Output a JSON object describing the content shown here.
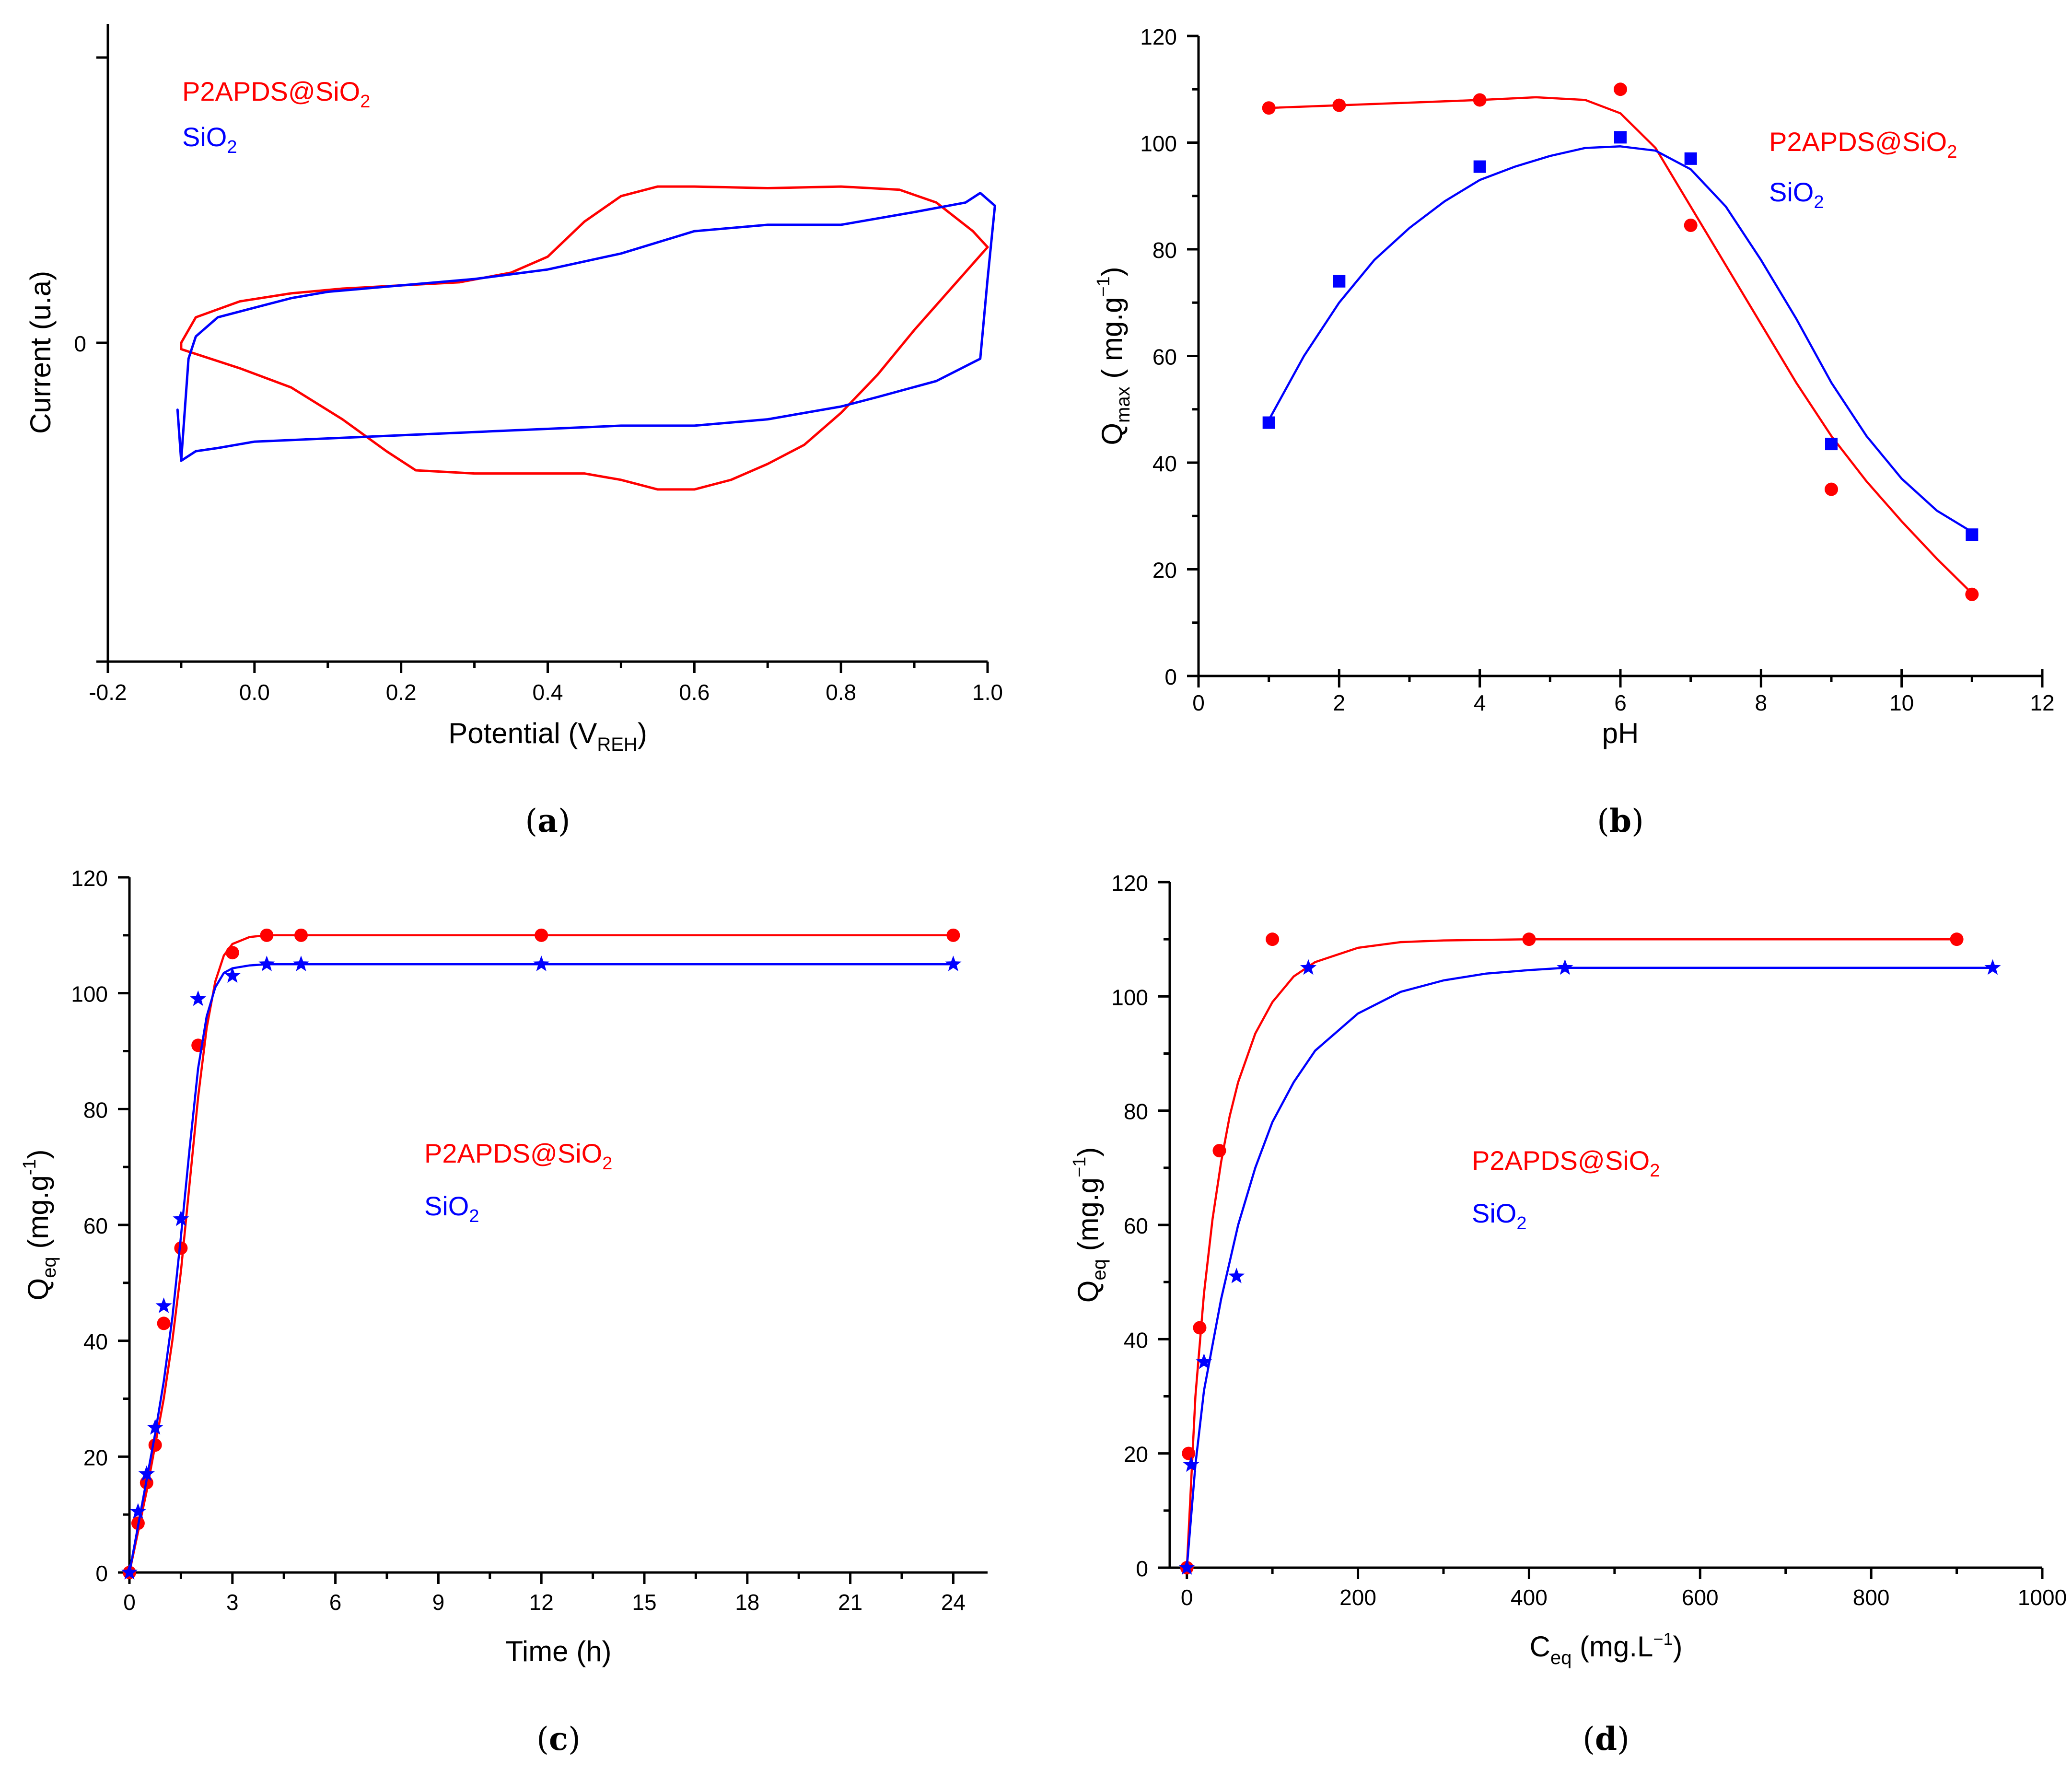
{
  "colors": {
    "red": "#ff0000",
    "blue": "#0000ff"
  },
  "chart_data": [
    {
      "id": "a",
      "type": "line",
      "panel_label": "a",
      "xlabel": {
        "text": "Potential (V",
        "sub": "REH",
        "tail": ")"
      },
      "ylabel": "Current (u.a)",
      "x_ticks": [
        "-0.2",
        "0.0",
        "0.2",
        "0.4",
        "0.6",
        "0.8",
        "1.0"
      ],
      "y_ticks": [
        "0"
      ],
      "xlim": [
        -0.2,
        1.0
      ],
      "ylim": [
        -1.0,
        1.0
      ],
      "legend": [
        {
          "text": "P2APDS@SiO",
          "sub": "2",
          "color": "#ff0000"
        },
        {
          "text": "SiO",
          "sub": "2",
          "color": "#0000ff"
        }
      ],
      "series": [
        {
          "name": "P2APDS@SiO2",
          "color": "#ff0000",
          "closed": true,
          "points": [
            [
              -0.1,
              0.0
            ],
            [
              -0.08,
              0.08
            ],
            [
              -0.02,
              0.13
            ],
            [
              0.05,
              0.155
            ],
            [
              0.12,
              0.17
            ],
            [
              0.2,
              0.18
            ],
            [
              0.28,
              0.19
            ],
            [
              0.35,
              0.22
            ],
            [
              0.4,
              0.27
            ],
            [
              0.45,
              0.38
            ],
            [
              0.5,
              0.46
            ],
            [
              0.55,
              0.49
            ],
            [
              0.6,
              0.49
            ],
            [
              0.7,
              0.485
            ],
            [
              0.8,
              0.49
            ],
            [
              0.88,
              0.48
            ],
            [
              0.93,
              0.44
            ],
            [
              0.98,
              0.35
            ],
            [
              1.0,
              0.3
            ],
            [
              0.95,
              0.17
            ],
            [
              0.9,
              0.04
            ],
            [
              0.85,
              -0.1
            ],
            [
              0.8,
              -0.22
            ],
            [
              0.75,
              -0.32
            ],
            [
              0.7,
              -0.38
            ],
            [
              0.65,
              -0.43
            ],
            [
              0.6,
              -0.46
            ],
            [
              0.55,
              -0.46
            ],
            [
              0.5,
              -0.43
            ],
            [
              0.45,
              -0.41
            ],
            [
              0.4,
              -0.41
            ],
            [
              0.3,
              -0.41
            ],
            [
              0.22,
              -0.4
            ],
            [
              0.18,
              -0.34
            ],
            [
              0.12,
              -0.24
            ],
            [
              0.05,
              -0.14
            ],
            [
              -0.02,
              -0.08
            ],
            [
              -0.1,
              -0.02
            ]
          ]
        },
        {
          "name": "SiO2",
          "color": "#0000ff",
          "closed": true,
          "points": [
            [
              -0.1,
              -0.37
            ],
            [
              -0.09,
              -0.05
            ],
            [
              -0.08,
              0.02
            ],
            [
              -0.05,
              0.08
            ],
            [
              0.0,
              0.11
            ],
            [
              0.05,
              0.14
            ],
            [
              0.1,
              0.16
            ],
            [
              0.2,
              0.18
            ],
            [
              0.3,
              0.2
            ],
            [
              0.4,
              0.23
            ],
            [
              0.5,
              0.28
            ],
            [
              0.6,
              0.35
            ],
            [
              0.7,
              0.37
            ],
            [
              0.8,
              0.37
            ],
            [
              0.9,
              0.41
            ],
            [
              0.97,
              0.44
            ],
            [
              0.99,
              0.47
            ],
            [
              1.01,
              0.43
            ],
            [
              1.0,
              0.2
            ],
            [
              0.99,
              -0.05
            ],
            [
              0.93,
              -0.12
            ],
            [
              0.85,
              -0.17
            ],
            [
              0.8,
              -0.2
            ],
            [
              0.7,
              -0.24
            ],
            [
              0.6,
              -0.26
            ],
            [
              0.5,
              -0.26
            ],
            [
              0.4,
              -0.27
            ],
            [
              0.3,
              -0.28
            ],
            [
              0.2,
              -0.29
            ],
            [
              0.1,
              -0.3
            ],
            [
              0.0,
              -0.31
            ],
            [
              -0.05,
              -0.33
            ],
            [
              -0.08,
              -0.34
            ],
            [
              -0.1,
              -0.37
            ],
            [
              -0.105,
              -0.21
            ]
          ]
        }
      ]
    },
    {
      "id": "b",
      "type": "scatter",
      "panel_label": "b",
      "xlabel": {
        "text": "pH"
      },
      "ylabel": {
        "main": "Q",
        "sub": "max",
        "unit": "( mg.g",
        "sup": "−1",
        "close": ")"
      },
      "xlim": [
        0,
        12
      ],
      "ylim": [
        0,
        120
      ],
      "x_ticks": [
        0,
        2,
        4,
        6,
        8,
        10,
        12
      ],
      "y_ticks": [
        0,
        20,
        40,
        60,
        80,
        100,
        120
      ],
      "legend": [
        {
          "text": "P2APDS@SiO",
          "sub": "2",
          "color": "#ff0000"
        },
        {
          "text": "SiO",
          "sub": "2",
          "color": "#0000ff"
        }
      ],
      "series": [
        {
          "name": "P2APDS@SiO2",
          "color": "#ff0000",
          "marker": "circle",
          "x": [
            1,
            2,
            4,
            6,
            7,
            9,
            11
          ],
          "y": [
            106.5,
            107,
            108,
            110,
            84.5,
            35,
            15.3
          ],
          "fit": [
            [
              1,
              106.5
            ],
            [
              2,
              107
            ],
            [
              3,
              107.5
            ],
            [
              4,
              108
            ],
            [
              4.8,
              108.5
            ],
            [
              5.5,
              108
            ],
            [
              6.0,
              105.5
            ],
            [
              6.5,
              99
            ],
            [
              7,
              88
            ],
            [
              7.5,
              77
            ],
            [
              8,
              66
            ],
            [
              8.5,
              55
            ],
            [
              9,
              45
            ],
            [
              9.5,
              36.5
            ],
            [
              10,
              29
            ],
            [
              10.5,
              22
            ],
            [
              11,
              15.5
            ]
          ]
        },
        {
          "name": "SiO2",
          "color": "#0000ff",
          "marker": "square",
          "x": [
            1,
            2,
            4,
            6,
            7,
            9,
            11
          ],
          "y": [
            47.5,
            74,
            95.5,
            101,
            97,
            43.5,
            26.5
          ],
          "fit": [
            [
              1,
              48
            ],
            [
              1.5,
              60
            ],
            [
              2,
              70
            ],
            [
              2.5,
              78
            ],
            [
              3,
              84
            ],
            [
              3.5,
              89
            ],
            [
              4,
              93
            ],
            [
              4.5,
              95.5
            ],
            [
              5,
              97.5
            ],
            [
              5.5,
              99
            ],
            [
              6,
              99.3
            ],
            [
              6.5,
              98.5
            ],
            [
              7,
              95
            ],
            [
              7.5,
              88
            ],
            [
              8,
              78
            ],
            [
              8.5,
              67
            ],
            [
              9,
              55
            ],
            [
              9.5,
              45
            ],
            [
              10,
              37
            ],
            [
              10.5,
              31
            ],
            [
              11,
              27
            ]
          ]
        }
      ]
    },
    {
      "id": "c",
      "type": "scatter",
      "panel_label": "c",
      "xlabel": {
        "text": "Time (h)"
      },
      "ylabel": {
        "main": "Q",
        "sub": "eq",
        "unit": "(mg.g",
        "sup": "-1",
        "close": ")"
      },
      "xlim": [
        0,
        25
      ],
      "ylim": [
        0,
        120
      ],
      "x_ticks": [
        0,
        3,
        6,
        9,
        12,
        15,
        18,
        21,
        24
      ],
      "y_ticks": [
        0,
        20,
        40,
        60,
        80,
        100,
        120
      ],
      "legend": [
        {
          "text": "P2APDS@SiO",
          "sub": "2",
          "color": "#ff0000"
        },
        {
          "text": "SiO",
          "sub": "2",
          "color": "#0000ff"
        }
      ],
      "series": [
        {
          "name": "P2APDS@SiO2",
          "color": "#ff0000",
          "marker": "circle",
          "x": [
            0,
            0.25,
            0.5,
            0.75,
            1,
            1.5,
            2,
            3,
            4,
            5,
            12,
            24
          ],
          "y": [
            0,
            8.5,
            15.5,
            22,
            43,
            56,
            91,
            107,
            110,
            110,
            110,
            110
          ],
          "fit": [
            [
              0,
              0
            ],
            [
              0.25,
              7
            ],
            [
              0.5,
              14
            ],
            [
              0.75,
              22
            ],
            [
              1,
              30
            ],
            [
              1.25,
              40
            ],
            [
              1.5,
              52
            ],
            [
              1.75,
              67
            ],
            [
              2,
              82
            ],
            [
              2.25,
              94
            ],
            [
              2.5,
              102
            ],
            [
              2.75,
              106.5
            ],
            [
              3,
              108.5
            ],
            [
              3.5,
              109.7
            ],
            [
              4,
              110
            ],
            [
              5,
              110
            ],
            [
              12,
              110
            ],
            [
              24,
              110
            ]
          ]
        },
        {
          "name": "SiO2",
          "color": "#0000ff",
          "marker": "star",
          "x": [
            0,
            0.25,
            0.5,
            0.75,
            1,
            1.5,
            2,
            3,
            4,
            5,
            12,
            24
          ],
          "y": [
            0,
            10.5,
            17,
            25,
            46,
            61,
            99,
            103,
            105,
            105,
            105,
            105
          ],
          "fit": [
            [
              0,
              0
            ],
            [
              0.25,
              8
            ],
            [
              0.5,
              16
            ],
            [
              0.75,
              24
            ],
            [
              1,
              33
            ],
            [
              1.25,
              44
            ],
            [
              1.5,
              58
            ],
            [
              1.75,
              73
            ],
            [
              2,
              87
            ],
            [
              2.25,
              96
            ],
            [
              2.5,
              101
            ],
            [
              2.75,
              103.5
            ],
            [
              3,
              104.3
            ],
            [
              3.5,
              104.8
            ],
            [
              4,
              105
            ],
            [
              5,
              105
            ],
            [
              12,
              105
            ],
            [
              24,
              105
            ]
          ]
        }
      ]
    },
    {
      "id": "d",
      "type": "scatter",
      "panel_label": "d",
      "xlabel": {
        "main": "C",
        "sub": "eq",
        "unit": " (mg.L",
        "sup": "−1",
        "close": ")"
      },
      "ylabel": {
        "main": "Q",
        "sub": "eq",
        "unit": "(mg.g",
        "sup": "−1",
        "close": ")"
      },
      "xlim": [
        -20,
        1000
      ],
      "ylim": [
        0,
        120
      ],
      "x_ticks": [
        0,
        200,
        400,
        600,
        800,
        1000
      ],
      "y_ticks": [
        0,
        20,
        40,
        60,
        80,
        100,
        120
      ],
      "legend": [
        {
          "text": "P2APDS@SiO",
          "sub": "2",
          "color": "#ff0000"
        },
        {
          "text": "SiO",
          "sub": "2",
          "color": "#0000ff"
        }
      ],
      "series": [
        {
          "name": "P2APDS@SiO2",
          "color": "#ff0000",
          "marker": "circle",
          "x": [
            0,
            2,
            15,
            38,
            100,
            400,
            900
          ],
          "y": [
            0,
            20,
            42,
            73,
            110,
            110,
            110
          ],
          "fit": [
            [
              0,
              0
            ],
            [
              10,
              30
            ],
            [
              20,
              48
            ],
            [
              30,
              61
            ],
            [
              40,
              71
            ],
            [
              50,
              79
            ],
            [
              60,
              85
            ],
            [
              80,
              93.5
            ],
            [
              100,
              99
            ],
            [
              125,
              103.5
            ],
            [
              150,
              106
            ],
            [
              200,
              108.5
            ],
            [
              250,
              109.5
            ],
            [
              300,
              109.8
            ],
            [
              400,
              110
            ],
            [
              900,
              110
            ]
          ]
        },
        {
          "name": "SiO2",
          "color": "#0000ff",
          "marker": "star",
          "x": [
            0,
            5,
            20,
            58,
            142,
            442,
            942
          ],
          "y": [
            0,
            18,
            36,
            51,
            105,
            105,
            105
          ],
          "fit": [
            [
              0,
              0
            ],
            [
              10,
              18
            ],
            [
              20,
              31
            ],
            [
              40,
              47
            ],
            [
              60,
              60
            ],
            [
              80,
              70
            ],
            [
              100,
              78
            ],
            [
              125,
              85
            ],
            [
              150,
              90.5
            ],
            [
              200,
              97
            ],
            [
              250,
              100.8
            ],
            [
              300,
              102.8
            ],
            [
              350,
              104
            ],
            [
              400,
              104.6
            ],
            [
              442,
              105
            ],
            [
              942,
              105
            ]
          ]
        }
      ]
    }
  ]
}
